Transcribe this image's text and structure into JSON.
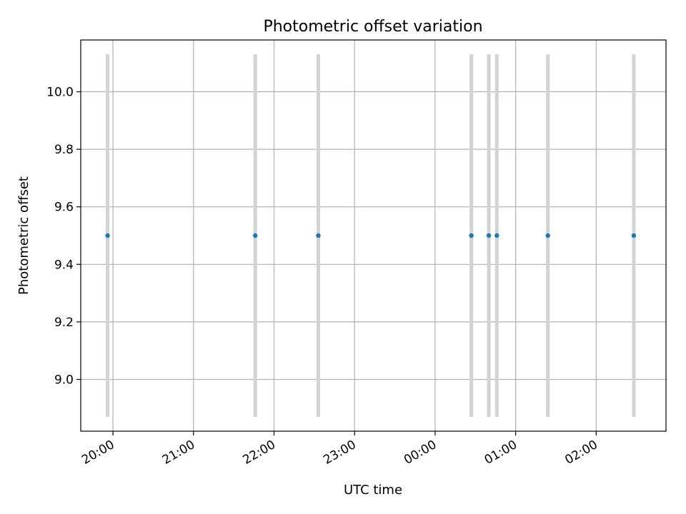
{
  "chart_data": {
    "type": "scatter",
    "title": "Photometric offset variation",
    "xlabel": "UTC time",
    "ylabel": "Photometric offset",
    "x_axis": {
      "kind": "time",
      "range": [
        "19:36",
        "02:52"
      ],
      "ticks": [
        "20:00",
        "21:00",
        "22:00",
        "23:00",
        "00:00",
        "01:00",
        "02:00"
      ]
    },
    "y_axis": {
      "range": [
        8.82,
        10.18
      ],
      "ticks": [
        9.0,
        9.2,
        9.4,
        9.6,
        9.8,
        10.0
      ],
      "tick_labels": [
        "9.0",
        "9.2",
        "9.4",
        "9.6",
        "9.8",
        "10.0"
      ]
    },
    "grid": true,
    "points": {
      "x": [
        "19:56",
        "21:46",
        "22:33",
        "00:27",
        "00:40",
        "00:46",
        "01:24",
        "02:28"
      ],
      "y": [
        9.5,
        9.5,
        9.5,
        9.5,
        9.5,
        9.5,
        9.5,
        9.5
      ],
      "error_low": [
        8.87,
        8.87,
        8.87,
        8.87,
        8.87,
        8.87,
        8.87,
        8.87
      ],
      "error_high": [
        10.13,
        10.13,
        10.13,
        10.13,
        10.13,
        10.13,
        10.13,
        10.13
      ]
    },
    "colors": {
      "marker": "#1f77b4",
      "errorbar": "#d3d3d3",
      "grid": "#b0b0b0"
    }
  }
}
